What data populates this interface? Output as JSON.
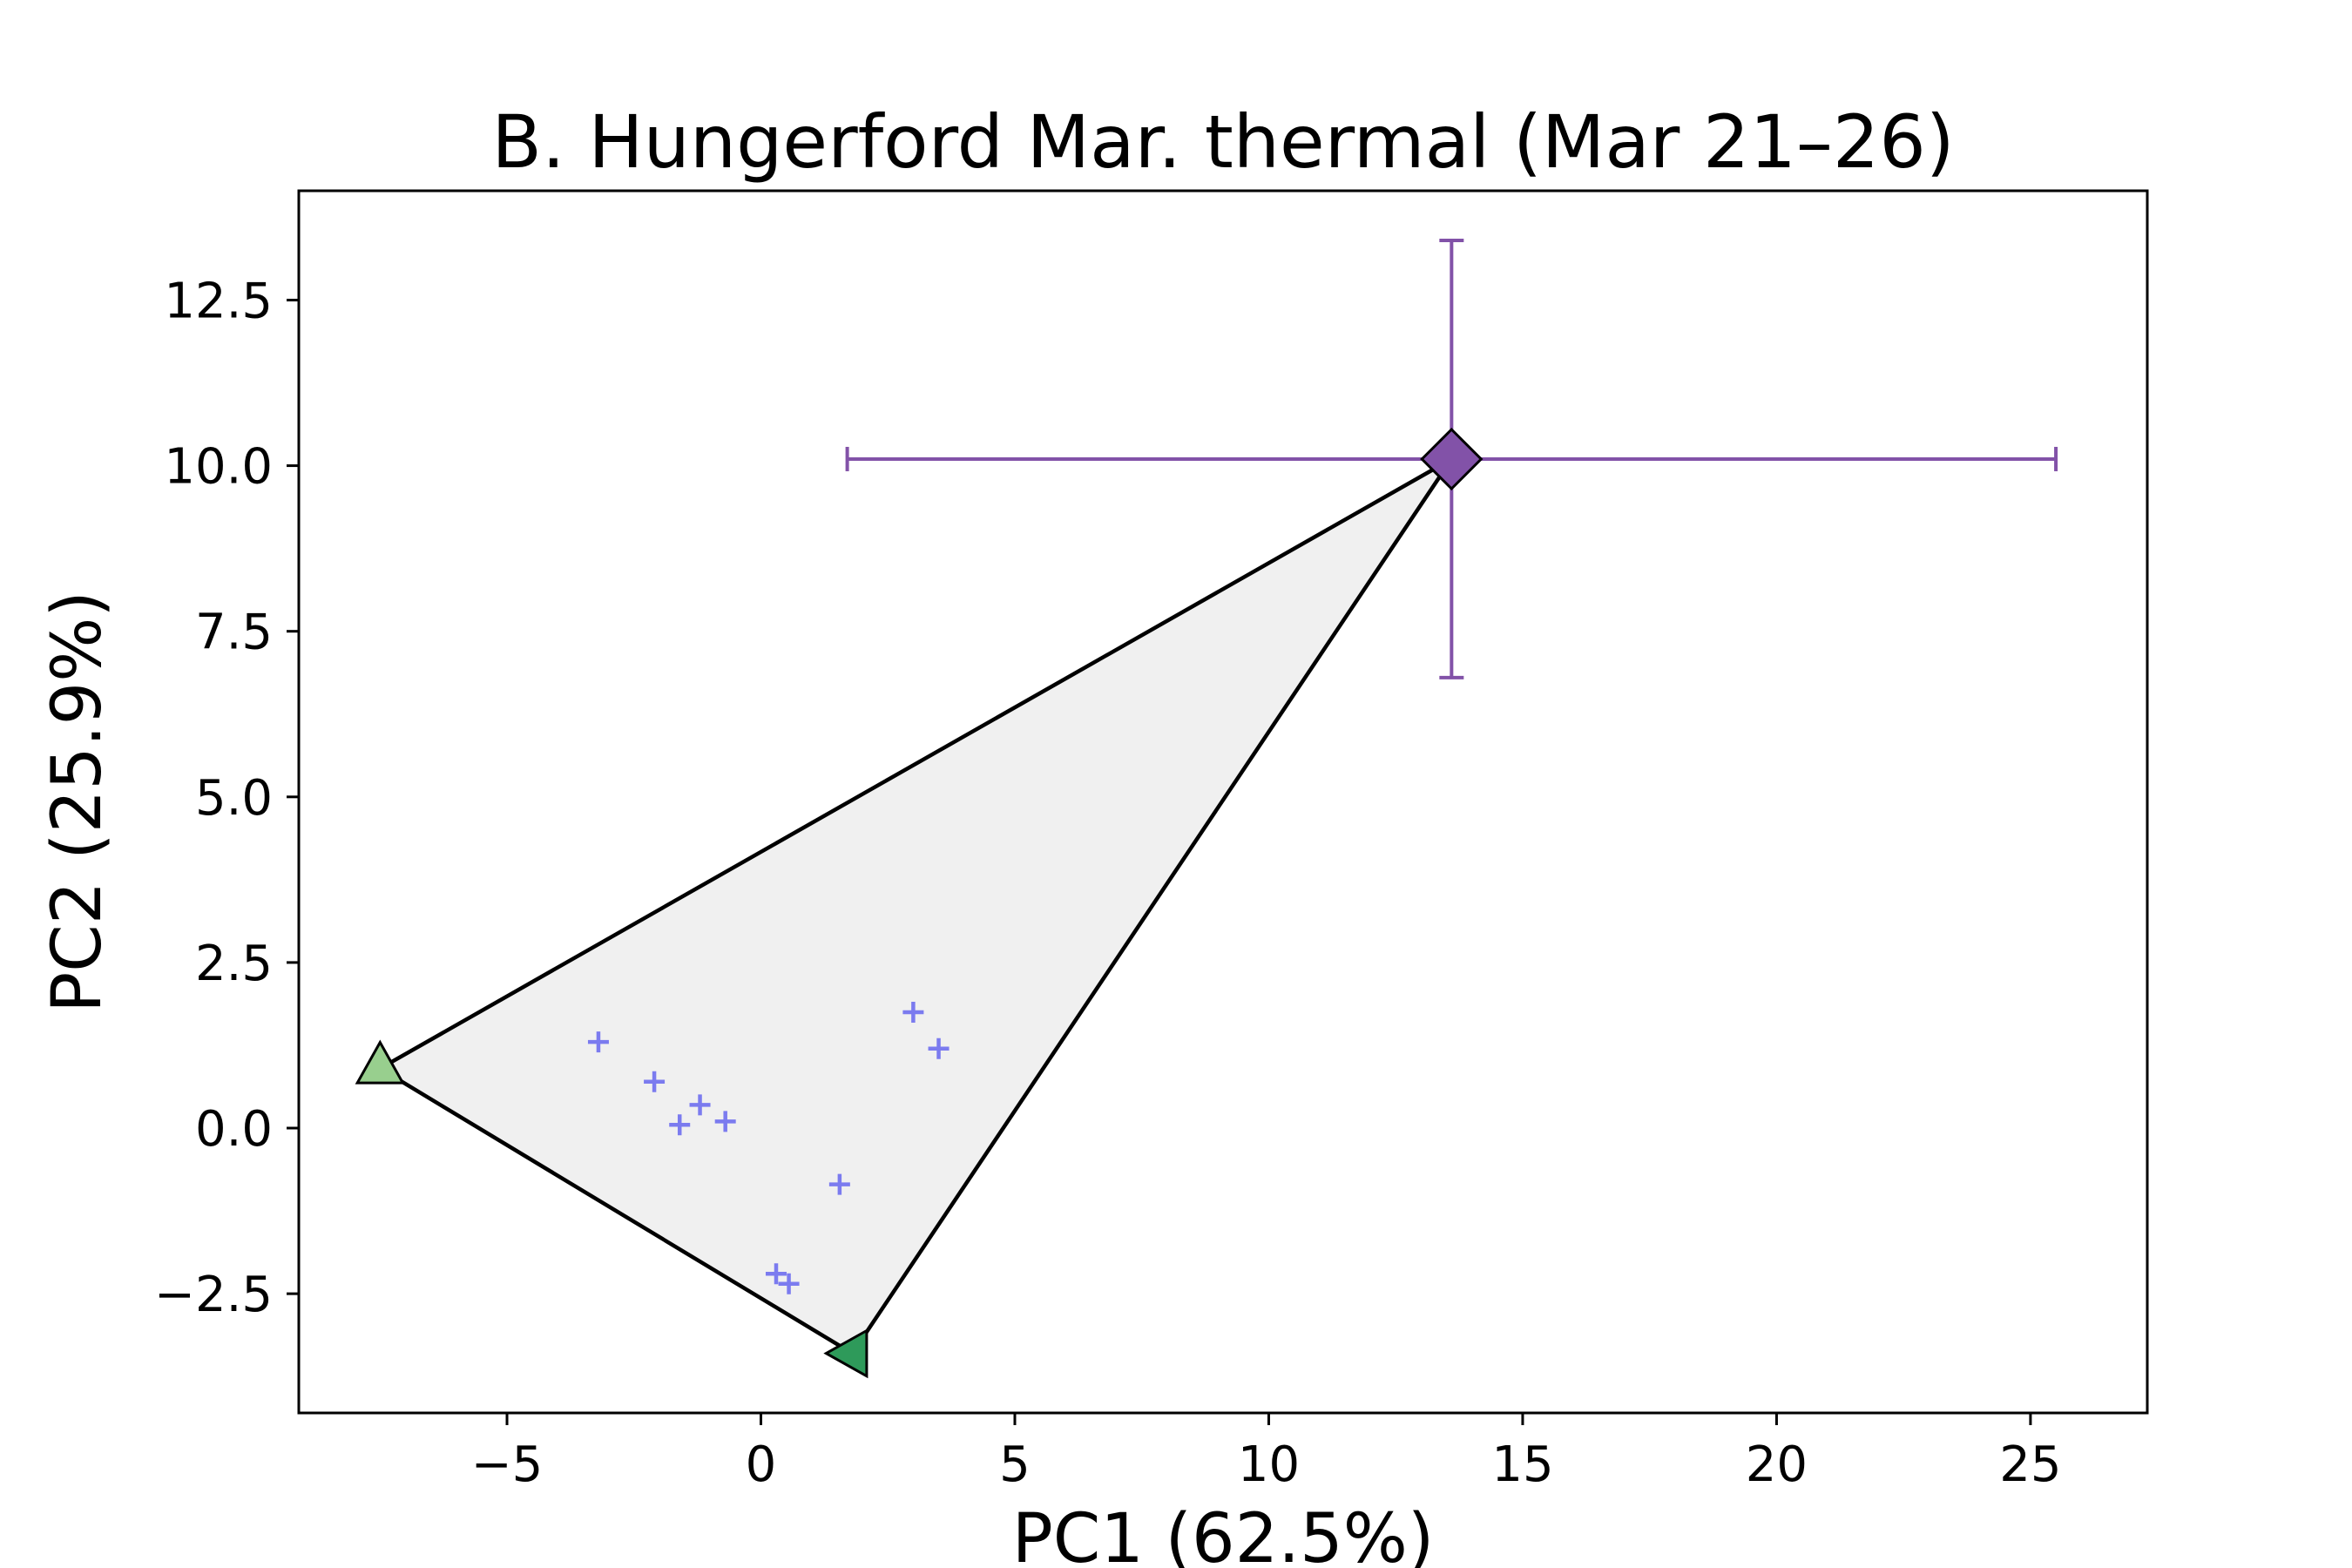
{
  "chart_data": {
    "type": "scatter",
    "title": "B. Hungerford Mar. thermal (Mar 21–26)",
    "xlabel": "PC1 (62.5%)",
    "ylabel": "PC2 (25.9%)",
    "xlim": [
      -9.1,
      27.3
    ],
    "ylim": [
      -4.3,
      14.15
    ],
    "xticks": [
      -5,
      0,
      5,
      10,
      15,
      20,
      25
    ],
    "xtick_labels": [
      "−5",
      "0",
      "5",
      "10",
      "15",
      "20",
      "25"
    ],
    "yticks": [
      -2.5,
      0.0,
      2.5,
      5.0,
      7.5,
      10.0,
      12.5
    ],
    "ytick_labels": [
      "−2.5",
      "0.0",
      "2.5",
      "5.0",
      "7.5",
      "10.0",
      "12.5"
    ],
    "grid": false,
    "hull": {
      "points": [
        [
          -7.5,
          0.9
        ],
        [
          13.6,
          10.1
        ],
        [
          1.8,
          -3.4
        ]
      ],
      "fill": "#f0f0f0",
      "stroke": "#000000"
    },
    "endmembers": [
      {
        "marker": "triangle-up",
        "x": -7.5,
        "y": 0.9,
        "color": "#98cf8e"
      },
      {
        "marker": "triangle-left",
        "x": 1.8,
        "y": -3.4,
        "color": "#2e9a5a"
      },
      {
        "marker": "diamond",
        "x": 13.6,
        "y": 10.1,
        "color": "#8252a8",
        "xerr": [
          1.7,
          25.5
        ],
        "yerr": [
          6.8,
          13.4
        ],
        "err_color": "#8252a8"
      }
    ],
    "samples": {
      "marker": "plus",
      "color": "#7b7bef",
      "points": [
        [
          -3.2,
          1.3
        ],
        [
          -2.1,
          0.7
        ],
        [
          -1.6,
          0.05
        ],
        [
          -1.2,
          0.35
        ],
        [
          -0.7,
          0.1
        ],
        [
          0.3,
          -2.2
        ],
        [
          0.55,
          -2.35
        ],
        [
          1.55,
          -0.85
        ],
        [
          3.0,
          1.75
        ],
        [
          3.5,
          1.2
        ]
      ]
    }
  }
}
